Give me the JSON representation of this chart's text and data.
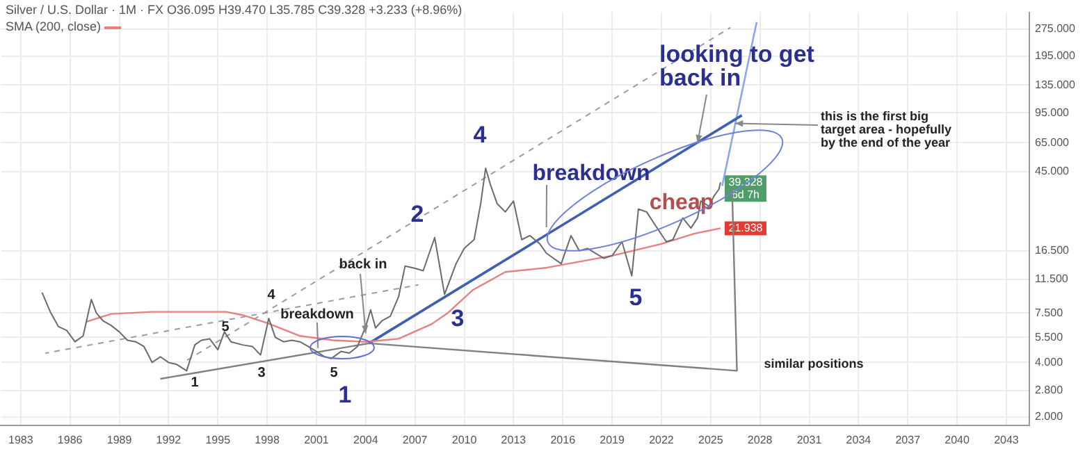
{
  "chart_data": {
    "type": "line",
    "title": "Silver / U.S. Dollar · 1M · FX O36.095 H39.470 L35.785 C39.328 +3.233 (+8.96%)",
    "log": "y",
    "grid": true,
    "legend": "top left",
    "marker": "none",
    "xlim": [
      1981.8,
      2044.4
    ],
    "xticks": [
      1983,
      1986,
      1989,
      1992,
      1995,
      1998,
      2001,
      2004,
      2007,
      2010,
      2013,
      2016,
      2019,
      2022,
      2025,
      2028,
      2031,
      2034,
      2037,
      2040,
      2043
    ],
    "ylim": [
      1.8,
      340
    ],
    "yticks": [
      {
        "value": 2,
        "label": "2.000"
      },
      {
        "value": 2.8,
        "label": "2.800"
      },
      {
        "value": 4,
        "label": "4.000"
      },
      {
        "value": 5.5,
        "label": "5.500"
      },
      {
        "value": 7.5,
        "label": "7.500"
      },
      {
        "value": 11.5,
        "label": "11.500"
      },
      {
        "value": 16.5,
        "label": "16.500"
      },
      {
        "value": 45,
        "label": "45.000"
      },
      {
        "value": 65,
        "label": "65.000"
      },
      {
        "value": 95,
        "label": "95.000"
      },
      {
        "value": 135,
        "label": "135.000"
      },
      {
        "value": 195,
        "label": "195.000"
      },
      {
        "value": 275,
        "label": "275.000"
      }
    ],
    "series": [
      {
        "color": "#6b6b6b",
        "x": [
          1984.3,
          1984.8,
          1985.3,
          1985.8,
          1986.3,
          1986.8,
          1987.3,
          1987.6,
          1988.0,
          1988.5,
          1989.0,
          1989.5,
          1990.0,
          1990.5,
          1991.0,
          1991.5,
          1992.0,
          1992.5,
          1993.1,
          1993.6,
          1994.0,
          1994.5,
          1995.0,
          1995.4,
          1995.8,
          1996.5,
          1997.1,
          1997.6,
          1998.1,
          1998.5,
          1999.0,
          1999.5,
          2000.0,
          2000.5,
          2001.0,
          2001.5,
          2001.9,
          2002.5,
          2003.0,
          2003.5,
          2004.0,
          2004.3,
          2004.6,
          2005.0,
          2005.5,
          2006.0,
          2006.4,
          2007.0,
          2007.5,
          2008.2,
          2008.8,
          2009.5,
          2010.0,
          2010.6,
          2011.0,
          2011.3,
          2011.6,
          2012.0,
          2012.5,
          2013.0,
          2013.5,
          2014.0,
          2014.6,
          2015.0,
          2015.9,
          2016.5,
          2017.0,
          2017.5,
          2018.5,
          2019.0,
          2019.6,
          2020.2,
          2020.6,
          2021.1,
          2021.6,
          2022.3,
          2022.7,
          2023.3,
          2023.8,
          2024.2,
          2024.4,
          2024.9,
          2025.2,
          2025.5,
          2025.6
        ],
        "values": [
          9.7,
          7.6,
          6.3,
          6.0,
          5.2,
          5.6,
          8.9,
          7.5,
          6.8,
          6.4,
          5.9,
          5.3,
          5.2,
          4.9,
          4.0,
          4.3,
          4.0,
          3.9,
          3.6,
          5.0,
          5.3,
          5.4,
          4.7,
          5.9,
          5.2,
          5.0,
          4.9,
          4.4,
          7.0,
          5.5,
          5.2,
          5.3,
          5.2,
          4.9,
          4.6,
          4.3,
          4.2,
          4.6,
          4.5,
          4.9,
          6.3,
          7.8,
          6.2,
          6.8,
          7.2,
          9.2,
          13.6,
          13.2,
          12.8,
          19.5,
          9.5,
          14,
          17,
          19,
          30,
          47,
          38,
          30,
          27,
          31,
          19,
          20,
          18,
          16,
          14,
          20,
          16.5,
          17,
          15,
          15.5,
          18.5,
          12,
          28,
          27,
          23,
          18.5,
          19,
          25,
          22,
          25,
          31,
          29,
          33,
          36,
          39.328
        ],
        "value_labels": [
          null,
          null,
          null,
          null,
          null,
          null,
          null,
          null,
          null,
          null,
          null,
          null,
          null,
          null,
          null,
          null,
          null,
          null,
          null,
          null,
          null,
          null,
          null,
          null,
          null,
          null,
          null,
          null,
          null,
          null,
          null,
          null,
          null,
          null,
          null,
          null,
          null,
          null,
          null,
          null,
          null,
          null,
          null,
          null,
          null,
          null,
          null,
          null,
          null,
          null,
          null,
          null,
          null,
          null,
          null,
          null,
          null,
          null,
          null,
          null,
          null,
          null,
          null,
          null,
          null,
          null,
          null,
          null,
          null,
          null,
          null,
          null,
          null,
          null,
          null,
          null,
          null,
          null,
          null,
          null,
          null,
          null,
          null,
          null,
          "39.328"
        ]
      },
      {
        "name": "SMA (200, close)",
        "color": "#e88080",
        "x": [
          1987.0,
          1988.5,
          1991.0,
          1995.5,
          1996.5,
          1998.0,
          2000.0,
          2002.0,
          2004.0,
          2006.0,
          2008.0,
          2009.0,
          2010.5,
          2012.5,
          2015.0,
          2019.0,
          2022.0,
          2024.0,
          2025.6
        ],
        "values": [
          6.7,
          7.4,
          7.6,
          7.6,
          7.3,
          6.6,
          5.6,
          5.3,
          5.2,
          5.4,
          6.5,
          7.5,
          10,
          12.6,
          13.3,
          15.5,
          18,
          20.5,
          21.938
        ],
        "value_labels": [
          null,
          null,
          null,
          null,
          null,
          null,
          null,
          null,
          null,
          null,
          null,
          null,
          null,
          null,
          null,
          null,
          null,
          null,
          "21.938"
        ]
      },
      {
        "color": "#808080",
        "x": [
          1991.5,
          2004.2,
          2026.6,
          2026.3
        ],
        "values": [
          3.25,
          5.1,
          3.6,
          37
        ]
      },
      {
        "color": "#9a9aae",
        "line_style": "dashed",
        "x": [
          1984.5,
          2007.2
        ],
        "values": [
          4.5,
          10.7
        ]
      },
      {
        "color": "#9a9aae",
        "line_style": "dashed",
        "x": [
          1993.1,
          2026.2
        ],
        "values": [
          4.1,
          280
        ]
      },
      {
        "color": "#3f5fb0",
        "x": [
          2004.2,
          2026.9
        ],
        "values": [
          5.1,
          92
        ]
      },
      {
        "color": "#8aa8e8",
        "x": [
          2025.7,
          2027.8
        ],
        "values": [
          37.5,
          300
        ]
      }
    ],
    "annotations": [
      "1",
      "3",
      "5",
      "5",
      "4",
      {
        "text": "breakdown",
        "x": 2001.1,
        "y": 4.8
      },
      {
        "text": "back in",
        "x": 2004.0,
        "y": 5.8
      },
      "1",
      "2",
      "3",
      "4",
      {
        "text": "breakdown",
        "x": 2015.0,
        "y": 22.2
      },
      "cheap",
      "5",
      {
        "text": "looking to get",
        "x": 2024.2,
        "y": 65
      },
      "back in",
      {
        "text": "this is the first big target area - hopefully by the end of the year",
        "x": 2026.5,
        "y": 83
      },
      "similar positions",
      "6d 7h"
    ]
  }
}
